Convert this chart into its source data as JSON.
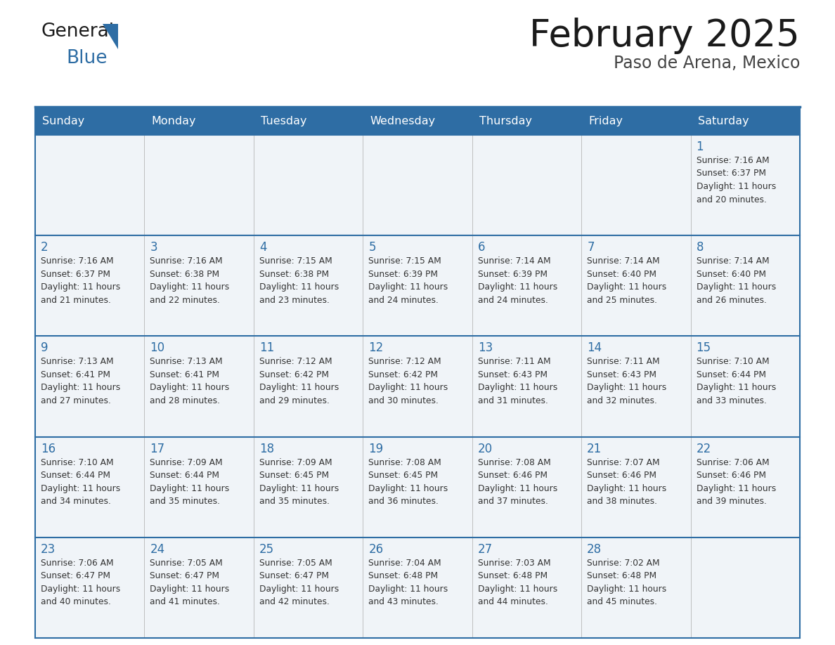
{
  "title": "February 2025",
  "subtitle": "Paso de Arena, Mexico",
  "header_bg": "#2E6DA4",
  "header_text_color": "#FFFFFF",
  "border_color": "#2E6DA4",
  "day_names": [
    "Sunday",
    "Monday",
    "Tuesday",
    "Wednesday",
    "Thursday",
    "Friday",
    "Saturday"
  ],
  "title_color": "#1a1a1a",
  "subtitle_color": "#444444",
  "day_num_color": "#2E6DA4",
  "cell_text_color": "#333333",
  "cell_bg": "#F0F4F8",
  "separator_color": "#aaaaaa",
  "calendar": [
    [
      null,
      null,
      null,
      null,
      null,
      null,
      {
        "d": 1,
        "sunrise": "7:16 AM",
        "sunset": "6:37 PM",
        "daylight": "11 hours",
        "daylight2": "and 20 minutes."
      }
    ],
    [
      {
        "d": 2,
        "sunrise": "7:16 AM",
        "sunset": "6:37 PM",
        "daylight": "11 hours",
        "daylight2": "and 21 minutes."
      },
      {
        "d": 3,
        "sunrise": "7:16 AM",
        "sunset": "6:38 PM",
        "daylight": "11 hours",
        "daylight2": "and 22 minutes."
      },
      {
        "d": 4,
        "sunrise": "7:15 AM",
        "sunset": "6:38 PM",
        "daylight": "11 hours",
        "daylight2": "and 23 minutes."
      },
      {
        "d": 5,
        "sunrise": "7:15 AM",
        "sunset": "6:39 PM",
        "daylight": "11 hours",
        "daylight2": "and 24 minutes."
      },
      {
        "d": 6,
        "sunrise": "7:14 AM",
        "sunset": "6:39 PM",
        "daylight": "11 hours",
        "daylight2": "and 24 minutes."
      },
      {
        "d": 7,
        "sunrise": "7:14 AM",
        "sunset": "6:40 PM",
        "daylight": "11 hours",
        "daylight2": "and 25 minutes."
      },
      {
        "d": 8,
        "sunrise": "7:14 AM",
        "sunset": "6:40 PM",
        "daylight": "11 hours",
        "daylight2": "and 26 minutes."
      }
    ],
    [
      {
        "d": 9,
        "sunrise": "7:13 AM",
        "sunset": "6:41 PM",
        "daylight": "11 hours",
        "daylight2": "and 27 minutes."
      },
      {
        "d": 10,
        "sunrise": "7:13 AM",
        "sunset": "6:41 PM",
        "daylight": "11 hours",
        "daylight2": "and 28 minutes."
      },
      {
        "d": 11,
        "sunrise": "7:12 AM",
        "sunset": "6:42 PM",
        "daylight": "11 hours",
        "daylight2": "and 29 minutes."
      },
      {
        "d": 12,
        "sunrise": "7:12 AM",
        "sunset": "6:42 PM",
        "daylight": "11 hours",
        "daylight2": "and 30 minutes."
      },
      {
        "d": 13,
        "sunrise": "7:11 AM",
        "sunset": "6:43 PM",
        "daylight": "11 hours",
        "daylight2": "and 31 minutes."
      },
      {
        "d": 14,
        "sunrise": "7:11 AM",
        "sunset": "6:43 PM",
        "daylight": "11 hours",
        "daylight2": "and 32 minutes."
      },
      {
        "d": 15,
        "sunrise": "7:10 AM",
        "sunset": "6:44 PM",
        "daylight": "11 hours",
        "daylight2": "and 33 minutes."
      }
    ],
    [
      {
        "d": 16,
        "sunrise": "7:10 AM",
        "sunset": "6:44 PM",
        "daylight": "11 hours",
        "daylight2": "and 34 minutes."
      },
      {
        "d": 17,
        "sunrise": "7:09 AM",
        "sunset": "6:44 PM",
        "daylight": "11 hours",
        "daylight2": "and 35 minutes."
      },
      {
        "d": 18,
        "sunrise": "7:09 AM",
        "sunset": "6:45 PM",
        "daylight": "11 hours",
        "daylight2": "and 35 minutes."
      },
      {
        "d": 19,
        "sunrise": "7:08 AM",
        "sunset": "6:45 PM",
        "daylight": "11 hours",
        "daylight2": "and 36 minutes."
      },
      {
        "d": 20,
        "sunrise": "7:08 AM",
        "sunset": "6:46 PM",
        "daylight": "11 hours",
        "daylight2": "and 37 minutes."
      },
      {
        "d": 21,
        "sunrise": "7:07 AM",
        "sunset": "6:46 PM",
        "daylight": "11 hours",
        "daylight2": "and 38 minutes."
      },
      {
        "d": 22,
        "sunrise": "7:06 AM",
        "sunset": "6:46 PM",
        "daylight": "11 hours",
        "daylight2": "and 39 minutes."
      }
    ],
    [
      {
        "d": 23,
        "sunrise": "7:06 AM",
        "sunset": "6:47 PM",
        "daylight": "11 hours",
        "daylight2": "and 40 minutes."
      },
      {
        "d": 24,
        "sunrise": "7:05 AM",
        "sunset": "6:47 PM",
        "daylight": "11 hours",
        "daylight2": "and 41 minutes."
      },
      {
        "d": 25,
        "sunrise": "7:05 AM",
        "sunset": "6:47 PM",
        "daylight": "11 hours",
        "daylight2": "and 42 minutes."
      },
      {
        "d": 26,
        "sunrise": "7:04 AM",
        "sunset": "6:48 PM",
        "daylight": "11 hours",
        "daylight2": "and 43 minutes."
      },
      {
        "d": 27,
        "sunrise": "7:03 AM",
        "sunset": "6:48 PM",
        "daylight": "11 hours",
        "daylight2": "and 44 minutes."
      },
      {
        "d": 28,
        "sunrise": "7:02 AM",
        "sunset": "6:48 PM",
        "daylight": "11 hours",
        "daylight2": "and 45 minutes."
      },
      null
    ]
  ],
  "figsize": [
    11.88,
    9.18
  ],
  "dpi": 100
}
